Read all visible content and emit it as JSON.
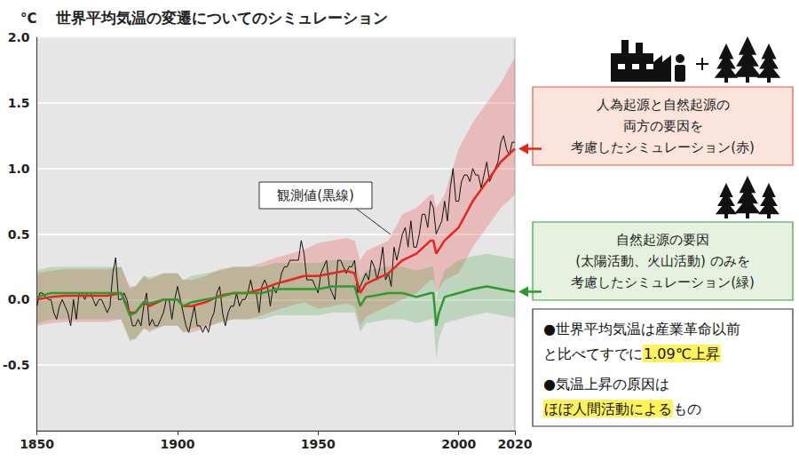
{
  "chart_data": {
    "type": "line",
    "title": "世界平均気温の変遷についてのシミュレーション",
    "ylabel": "°C",
    "xlim": [
      1850,
      2020
    ],
    "xticks": [
      1850,
      1900,
      1950,
      2000,
      2020
    ],
    "ylim": [
      -1.0,
      2.0
    ],
    "yticks": [
      -0.5,
      {
        "value": 0,
        "label": "0.0"
      },
      0.5,
      {
        "value": 1,
        "label": "1.0"
      },
      1.5,
      {
        "value": 2,
        "label": "2.0"
      }
    ],
    "grid": true,
    "series": [
      {
        "name": "観測値(黒線)",
        "color": "#111111",
        "x": [
          1850,
          1851,
          1852,
          1853,
          1854,
          1855,
          1856,
          1857,
          1858,
          1859,
          1860,
          1861,
          1862,
          1863,
          1864,
          1865,
          1866,
          1867,
          1868,
          1869,
          1870,
          1871,
          1872,
          1873,
          1874,
          1875,
          1876,
          1877,
          1878,
          1879,
          1880,
          1881,
          1882,
          1883,
          1884,
          1885,
          1886,
          1887,
          1888,
          1889,
          1890,
          1891,
          1892,
          1893,
          1894,
          1895,
          1896,
          1897,
          1898,
          1899,
          1900,
          1901,
          1902,
          1903,
          1904,
          1905,
          1906,
          1907,
          1908,
          1909,
          1910,
          1911,
          1912,
          1913,
          1914,
          1915,
          1916,
          1917,
          1918,
          1919,
          1920,
          1921,
          1922,
          1923,
          1924,
          1925,
          1926,
          1927,
          1928,
          1929,
          1930,
          1931,
          1932,
          1933,
          1934,
          1935,
          1936,
          1937,
          1938,
          1939,
          1940,
          1941,
          1942,
          1943,
          1944,
          1945,
          1946,
          1947,
          1948,
          1949,
          1950,
          1951,
          1952,
          1953,
          1954,
          1955,
          1956,
          1957,
          1958,
          1959,
          1960,
          1961,
          1962,
          1963,
          1964,
          1965,
          1966,
          1967,
          1968,
          1969,
          1970,
          1971,
          1972,
          1973,
          1974,
          1975,
          1976,
          1977,
          1978,
          1979,
          1980,
          1981,
          1982,
          1983,
          1984,
          1985,
          1986,
          1987,
          1988,
          1989,
          1990,
          1991,
          1992,
          1993,
          1994,
          1995,
          1996,
          1997,
          1998,
          1999,
          2000,
          2001,
          2002,
          2003,
          2004,
          2005,
          2006,
          2007,
          2008,
          2009,
          2010,
          2011,
          2012,
          2013,
          2014,
          2015,
          2016,
          2017,
          2018,
          2019,
          2020
        ],
        "values": [
          -0.05,
          0.05,
          0.05,
          0.02,
          0.0,
          0.0,
          -0.1,
          -0.15,
          -0.05,
          0.0,
          -0.05,
          -0.1,
          -0.2,
          0.0,
          -0.15,
          0.05,
          0.05,
          0.0,
          0.05,
          0.05,
          0.0,
          -0.05,
          0.0,
          0.0,
          -0.05,
          -0.1,
          -0.05,
          0.2,
          0.32,
          0.0,
          0.0,
          0.05,
          0.0,
          -0.1,
          -0.2,
          -0.2,
          -0.15,
          -0.2,
          -0.05,
          0.05,
          -0.2,
          -0.15,
          -0.2,
          -0.2,
          -0.15,
          -0.1,
          0.0,
          0.0,
          -0.15,
          0.0,
          0.1,
          0.0,
          -0.1,
          -0.2,
          -0.25,
          -0.15,
          -0.05,
          -0.2,
          -0.2,
          -0.25,
          -0.2,
          -0.25,
          -0.15,
          -0.1,
          0.05,
          0.1,
          -0.1,
          -0.2,
          -0.1,
          -0.05,
          -0.05,
          0.05,
          -0.05,
          0.0,
          0.0,
          0.05,
          0.15,
          0.05,
          0.05,
          -0.1,
          0.1,
          0.15,
          0.1,
          -0.05,
          0.1,
          0.05,
          0.1,
          0.2,
          0.25,
          0.25,
          0.3,
          0.3,
          0.3,
          0.3,
          0.45,
          0.35,
          0.15,
          0.15,
          0.15,
          0.1,
          0.05,
          0.2,
          0.25,
          0.3,
          0.1,
          0.05,
          0.0,
          0.3,
          0.3,
          0.25,
          0.2,
          0.25,
          0.25,
          0.3,
          0.05,
          0.1,
          0.15,
          0.2,
          0.15,
          0.3,
          0.25,
          0.15,
          0.25,
          0.4,
          0.15,
          0.2,
          0.1,
          0.4,
          0.3,
          0.4,
          0.5,
          0.55,
          0.4,
          0.6,
          0.4,
          0.4,
          0.5,
          0.65,
          0.65,
          0.55,
          0.75,
          0.7,
          0.5,
          0.55,
          0.6,
          0.75,
          0.6,
          0.85,
          1.0,
          0.75,
          0.75,
          0.9,
          0.95,
          0.95,
          0.9,
          1.0,
          0.95,
          0.95,
          0.85,
          0.95,
          1.05,
          0.9,
          0.95,
          1.0,
          1.05,
          1.2,
          1.25,
          1.15,
          1.1,
          1.2,
          1.2
        ]
      },
      {
        "name": "人為起源と自然起源の\n両方の要因を\n考慮したシミュレーション(赤)",
        "color": "#e8251c",
        "x": [
          1850,
          1855,
          1860,
          1865,
          1870,
          1875,
          1880,
          1883,
          1885,
          1888,
          1890,
          1895,
          1900,
          1902,
          1905,
          1910,
          1915,
          1920,
          1925,
          1930,
          1935,
          1940,
          1945,
          1950,
          1955,
          1960,
          1963,
          1965,
          1967,
          1970,
          1975,
          1980,
          1985,
          1990,
          1991,
          1992,
          1995,
          2000,
          2005,
          2010,
          2015,
          2020
        ],
        "values": [
          0.0,
          0.02,
          0.03,
          0.03,
          0.03,
          0.03,
          0.05,
          -0.1,
          -0.1,
          -0.02,
          -0.05,
          0.0,
          0.0,
          -0.05,
          -0.05,
          -0.02,
          0.03,
          0.05,
          0.05,
          0.08,
          0.12,
          0.15,
          0.18,
          0.18,
          0.2,
          0.22,
          0.2,
          0.05,
          0.12,
          0.15,
          0.2,
          0.3,
          0.35,
          0.45,
          0.45,
          0.35,
          0.45,
          0.55,
          0.75,
          0.9,
          1.05,
          1.15
        ],
        "lower": [
          -0.2,
          -0.18,
          -0.17,
          -0.17,
          -0.17,
          -0.17,
          -0.15,
          -0.3,
          -0.3,
          -0.22,
          -0.25,
          -0.2,
          -0.2,
          -0.25,
          -0.25,
          -0.22,
          -0.17,
          -0.15,
          -0.15,
          -0.12,
          -0.08,
          -0.05,
          -0.02,
          -0.07,
          -0.05,
          -0.03,
          -0.05,
          -0.2,
          -0.13,
          -0.1,
          -0.05,
          0.0,
          0.05,
          0.15,
          0.15,
          0.05,
          0.15,
          0.2,
          0.4,
          0.55,
          0.7,
          0.8
        ],
        "upper": [
          0.2,
          0.22,
          0.23,
          0.23,
          0.23,
          0.23,
          0.25,
          0.1,
          0.1,
          0.18,
          0.15,
          0.2,
          0.2,
          0.15,
          0.15,
          0.18,
          0.23,
          0.25,
          0.25,
          0.28,
          0.32,
          0.35,
          0.38,
          0.43,
          0.45,
          0.47,
          0.45,
          0.3,
          0.37,
          0.4,
          0.45,
          0.65,
          0.7,
          0.8,
          0.8,
          0.7,
          0.8,
          1.15,
          1.35,
          1.5,
          1.65,
          1.85
        ]
      },
      {
        "name": "自然起源の要因\n(太陽活動、火山活動) のみを\n考慮したシミュレーション(緑)",
        "color": "#2e9a2e",
        "x": [
          1850,
          1855,
          1860,
          1865,
          1870,
          1875,
          1880,
          1883,
          1885,
          1888,
          1890,
          1895,
          1900,
          1902,
          1905,
          1910,
          1915,
          1920,
          1925,
          1930,
          1935,
          1940,
          1945,
          1950,
          1955,
          1960,
          1963,
          1965,
          1967,
          1970,
          1975,
          1980,
          1985,
          1990,
          1991,
          1992,
          1993,
          1995,
          2000,
          2005,
          2010,
          2015,
          2020
        ],
        "values": [
          0.02,
          0.05,
          0.05,
          0.05,
          0.05,
          0.05,
          0.05,
          -0.12,
          -0.1,
          -0.02,
          -0.03,
          0.0,
          0.0,
          -0.05,
          -0.02,
          0.0,
          0.02,
          0.05,
          0.05,
          0.05,
          0.08,
          0.08,
          0.08,
          0.08,
          0.1,
          0.1,
          0.1,
          -0.05,
          0.02,
          0.03,
          0.05,
          0.05,
          0.02,
          0.05,
          0.05,
          -0.2,
          -0.1,
          0.02,
          0.05,
          0.08,
          0.1,
          0.08,
          0.06
        ],
        "lower": [
          -0.18,
          -0.15,
          -0.15,
          -0.15,
          -0.15,
          -0.15,
          -0.15,
          -0.32,
          -0.3,
          -0.22,
          -0.23,
          -0.2,
          -0.2,
          -0.25,
          -0.22,
          -0.2,
          -0.18,
          -0.15,
          -0.15,
          -0.15,
          -0.12,
          -0.12,
          -0.12,
          -0.12,
          -0.1,
          -0.1,
          -0.1,
          -0.25,
          -0.18,
          -0.17,
          -0.15,
          -0.15,
          -0.18,
          -0.15,
          -0.15,
          -0.45,
          -0.3,
          -0.18,
          -0.15,
          -0.12,
          -0.1,
          -0.12,
          -0.14
        ],
        "upper": [
          0.22,
          0.25,
          0.25,
          0.25,
          0.25,
          0.25,
          0.25,
          0.08,
          0.1,
          0.18,
          0.17,
          0.2,
          0.2,
          0.15,
          0.18,
          0.2,
          0.22,
          0.25,
          0.25,
          0.25,
          0.28,
          0.28,
          0.28,
          0.28,
          0.3,
          0.3,
          0.3,
          0.15,
          0.22,
          0.23,
          0.25,
          0.25,
          0.22,
          0.25,
          0.25,
          0.0,
          0.1,
          0.22,
          0.3,
          0.33,
          0.35,
          0.33,
          0.31
        ]
      }
    ],
    "notes": [
      [
        "●世界平均気温は産業革命以前\nと比べてすでに",
        "1.09℃上昇"
      ],
      [
        "●気温上昇の原因は\n",
        "ほぼ人間活動による",
        "もの"
      ]
    ]
  }
}
